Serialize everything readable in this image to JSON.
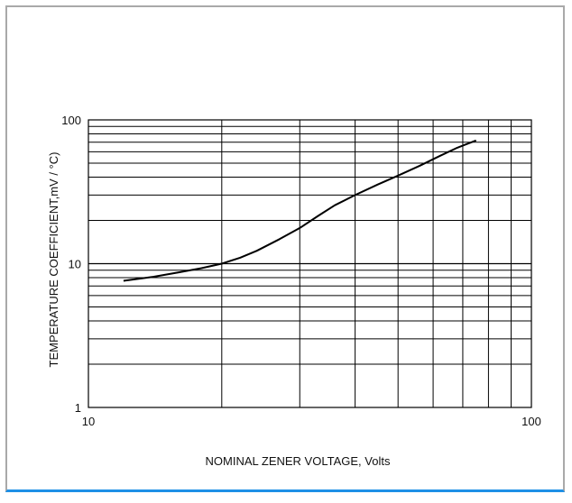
{
  "chart_data": {
    "type": "line",
    "xlabel": "NOMINAL ZENER VOLTAGE, Volts",
    "ylabel": "TEMPERATURE COEFFICIENT,mV / °C)",
    "xscale": "log",
    "yscale": "log",
    "xlim": [
      10,
      100
    ],
    "ylim": [
      1,
      100
    ],
    "grid": true,
    "x_ticks": [
      "10",
      "100"
    ],
    "y_ticks": [
      "1",
      "10",
      "100"
    ],
    "series": [
      {
        "x": [
          12,
          14,
          16,
          18,
          20,
          22,
          24,
          27,
          30,
          33,
          36,
          40,
          45,
          50,
          56,
          62,
          68,
          75
        ],
        "y": [
          7.6,
          8.1,
          8.7,
          9.3,
          10.0,
          11.0,
          12.3,
          14.8,
          17.7,
          21.5,
          25.5,
          30.0,
          35.5,
          41.0,
          48.0,
          56.0,
          64.0,
          72.0
        ]
      }
    ],
    "colors": {
      "line": "#000000",
      "grid": "#000000",
      "border": "#a9a9a9",
      "accent": "#1e90e6"
    }
  }
}
